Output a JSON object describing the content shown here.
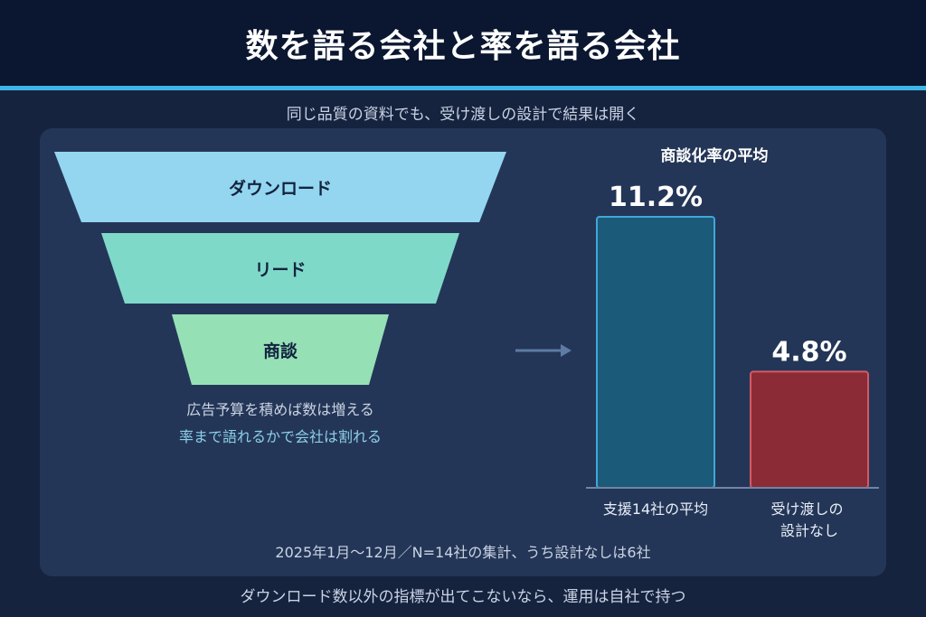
{
  "header": {
    "title": "数を語る会社と率を語る会社",
    "subtitle": "同じ品質の資料でも、受け渡しの設計で結果は開く"
  },
  "funnel": {
    "stages": [
      {
        "label": "ダウンロード",
        "color": "#94d6f0"
      },
      {
        "label": "リード",
        "color": "#7fd9c9"
      },
      {
        "label": "商談",
        "color": "#96e0b6"
      }
    ],
    "caption_line1": "広告予算を積めば数は増える",
    "caption_line2": "率まで語れるかで会社は割れる",
    "caption_line2_color": "#8ccfe8"
  },
  "chart_data": {
    "type": "bar",
    "title": "商談化率の平均",
    "categories": [
      "支援14社の平均",
      "受け渡しの\n設計なし"
    ],
    "values": [
      11.2,
      4.8
    ],
    "value_labels": [
      "11.2%",
      "4.8%"
    ],
    "unit": "%",
    "colors": [
      "#1b5a78",
      "#8b2b35"
    ],
    "ylim": [
      0,
      11.2
    ],
    "grid": false,
    "legend": "none"
  },
  "note": "2025年1月〜12月／N=14社の集計、うち設計なしは6社",
  "footer": "ダウンロード数以外の指標が出てこないなら、運用は自社で持つ"
}
